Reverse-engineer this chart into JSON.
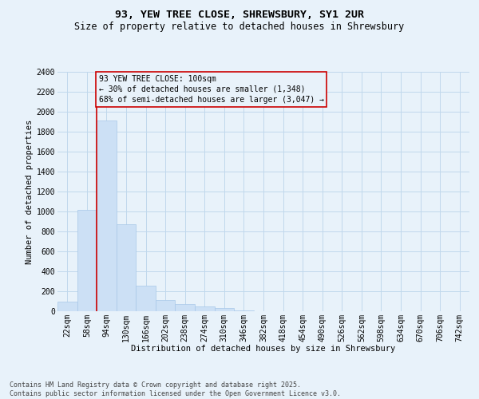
{
  "title_line1": "93, YEW TREE CLOSE, SHREWSBURY, SY1 2UR",
  "title_line2": "Size of property relative to detached houses in Shrewsbury",
  "xlabel": "Distribution of detached houses by size in Shrewsbury",
  "ylabel": "Number of detached properties",
  "categories": [
    "22sqm",
    "58sqm",
    "94sqm",
    "130sqm",
    "166sqm",
    "202sqm",
    "238sqm",
    "274sqm",
    "310sqm",
    "346sqm",
    "382sqm",
    "418sqm",
    "454sqm",
    "490sqm",
    "526sqm",
    "562sqm",
    "598sqm",
    "634sqm",
    "670sqm",
    "706sqm",
    "742sqm"
  ],
  "values": [
    100,
    1020,
    1910,
    870,
    260,
    110,
    75,
    50,
    30,
    10,
    0,
    0,
    0,
    0,
    0,
    0,
    0,
    0,
    0,
    0,
    0
  ],
  "bar_color": "#cce0f5",
  "bar_edge_color": "#a8c8e8",
  "grid_color": "#c0d8ec",
  "background_color": "#e8f2fa",
  "vline_color": "#cc0000",
  "annotation_box_text": "93 YEW TREE CLOSE: 100sqm\n← 30% of detached houses are smaller (1,348)\n68% of semi-detached houses are larger (3,047) →",
  "annotation_box_color": "#cc0000",
  "ylim": [
    0,
    2400
  ],
  "yticks": [
    0,
    200,
    400,
    600,
    800,
    1000,
    1200,
    1400,
    1600,
    1800,
    2000,
    2200,
    2400
  ],
  "footnote": "Contains HM Land Registry data © Crown copyright and database right 2025.\nContains public sector information licensed under the Open Government Licence v3.0.",
  "title_fontsize": 9.5,
  "subtitle_fontsize": 8.5,
  "axis_label_fontsize": 7.5,
  "tick_fontsize": 7,
  "annotation_fontsize": 7,
  "footnote_fontsize": 6
}
